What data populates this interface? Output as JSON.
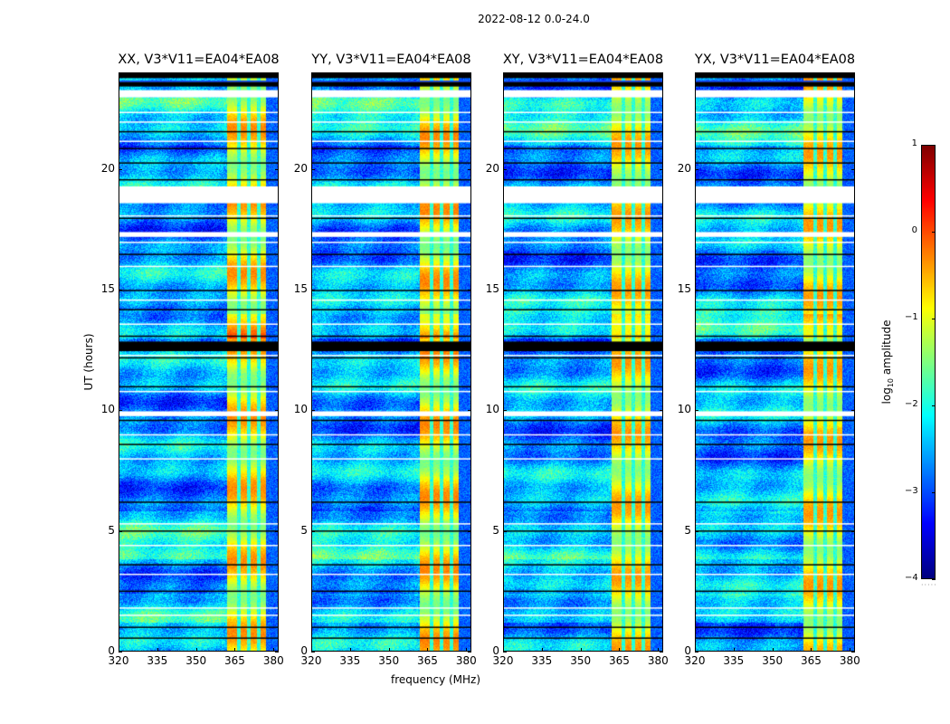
{
  "chart_data": {
    "type": "heatmap",
    "title": "2022-08-12 0.0-24.0",
    "xlabel": "frequency (MHz)",
    "ylabel": "UT (hours)",
    "xlim": [
      320,
      382
    ],
    "ylim": [
      0,
      24
    ],
    "xticks": [
      320,
      335,
      350,
      365,
      380
    ],
    "yticks": [
      0,
      5,
      10,
      15,
      20
    ],
    "colormap": "jet",
    "colorbar": {
      "label": "log10 amplitude",
      "label_main": "log",
      "label_sub": "10",
      "label_rest": " amplitude",
      "range": [
        -4,
        1
      ],
      "ticks": [
        1,
        0,
        -1,
        -2,
        -3,
        -4
      ],
      "tick_labels": [
        "1",
        "0",
        "−1",
        "−2",
        "−3",
        "−4"
      ],
      "placement": "right"
    },
    "panels": [
      {
        "title": "XX, V3*V11=EA04*EA08",
        "polarization": "XX",
        "rfi_strength": 1.0
      },
      {
        "title": "YY, V3*V11=EA04*EA08",
        "polarization": "YY",
        "rfi_strength": 1.05
      },
      {
        "title": "XY, V3*V11=EA04*EA08",
        "polarization": "XY",
        "rfi_strength": 0.9
      },
      {
        "title": "YX, V3*V11=EA04*EA08",
        "polarization": "YX",
        "rfi_strength": 0.9
      }
    ],
    "rfi_band_mhz": [
      362,
      379
    ],
    "rfi_subband_gaps_mhz": [
      366.5,
      370.5,
      374.5
    ],
    "flagged_hours_blank": [
      [
        23.0,
        23.3
      ],
      [
        19.3,
        18.6
      ],
      [
        17.4,
        17.2
      ],
      [
        9.95,
        9.75
      ]
    ],
    "flagged_hours_black": [
      [
        24.0,
        23.8
      ],
      [
        23.65,
        23.45
      ],
      [
        12.85,
        12.45
      ]
    ],
    "black_lines_hours": [
      21.6,
      20.9,
      20.3,
      19.6,
      18.0,
      16.5,
      15.0,
      14.2,
      13.1,
      12.2,
      11.0,
      9.6,
      8.6,
      6.2,
      5.0,
      3.6,
      2.5,
      1.0,
      0.55
    ],
    "white_lines_hours": [
      22.4,
      22.0,
      21.2,
      19.1,
      18.1,
      17.0,
      16.0,
      14.6,
      13.6,
      12.3,
      10.8,
      9.0,
      8.0,
      5.3,
      4.4,
      3.2,
      1.8,
      1.5
    ]
  }
}
